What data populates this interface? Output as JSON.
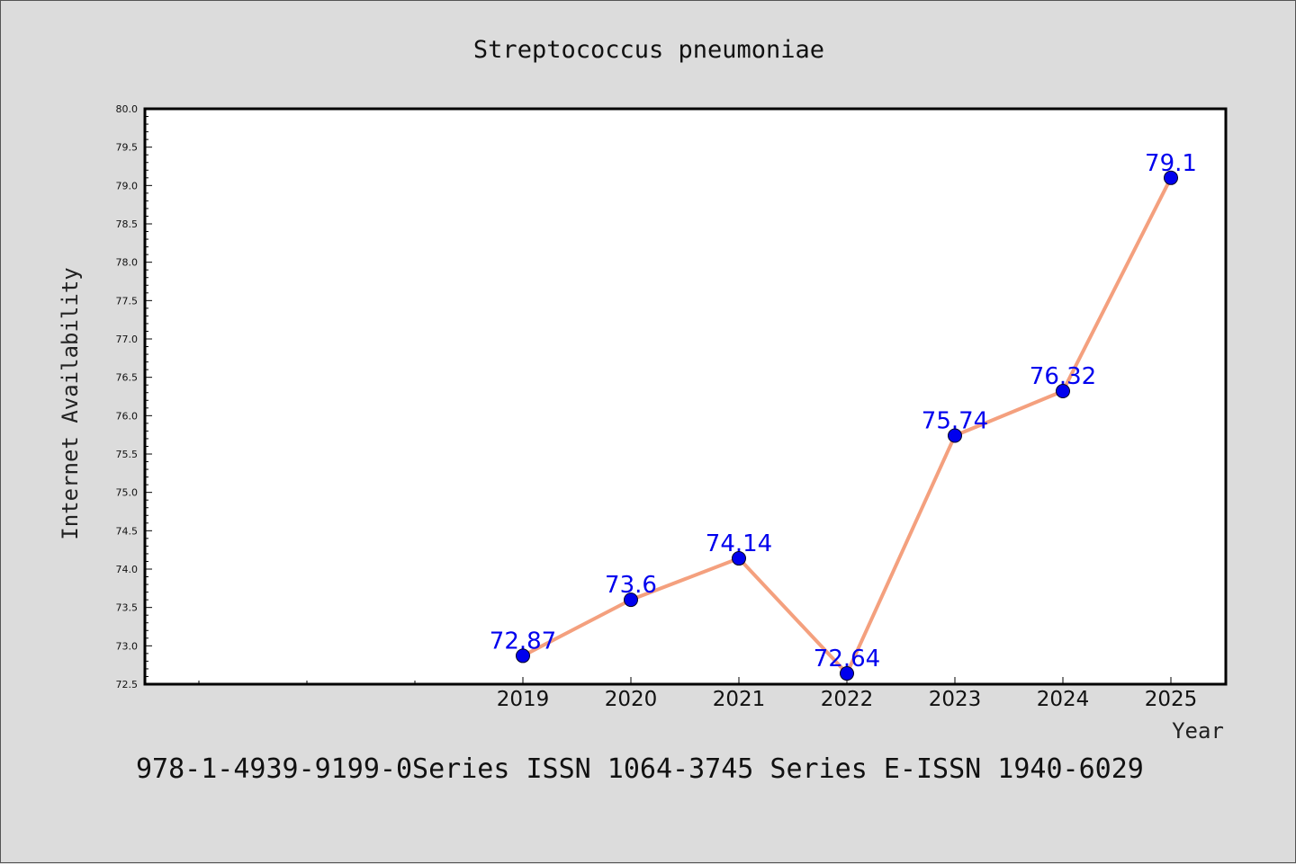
{
  "chart_data": {
    "type": "line",
    "title": "Streptococcus pneumoniae",
    "xlabel": "Year",
    "ylabel": "Internet Availability",
    "categories": [
      "2019",
      "2020",
      "2021",
      "2022",
      "2023",
      "2024",
      "2025"
    ],
    "x": [
      2019,
      2020,
      2021,
      2022,
      2023,
      2024,
      2025
    ],
    "series": [
      {
        "values": [
          72.87,
          73.6,
          74.14,
          72.64,
          75.74,
          76.32,
          79.1
        ],
        "data_labels": [
          "72.87",
          "73.6",
          "74.14",
          "72.64",
          "75.74",
          "76.32",
          "79.1"
        ],
        "line_color": "#f4a07e",
        "marker_color": "#0000ee"
      }
    ],
    "ylim": [
      72.5,
      80.0
    ],
    "yticks": [
      "72.5",
      "73.0",
      "73.5",
      "74.0",
      "74.5",
      "75.0",
      "75.5",
      "76.0",
      "76.5",
      "77.0",
      "77.5",
      "78.0",
      "78.5",
      "79.0",
      "79.5",
      "80.0"
    ],
    "data_label_color": "#0000ee",
    "grid": false,
    "legend": "none"
  },
  "footer": {
    "text": "978-1-4939-9199-0Series ISSN 1064-3745 Series E-ISSN 1940-6029"
  }
}
